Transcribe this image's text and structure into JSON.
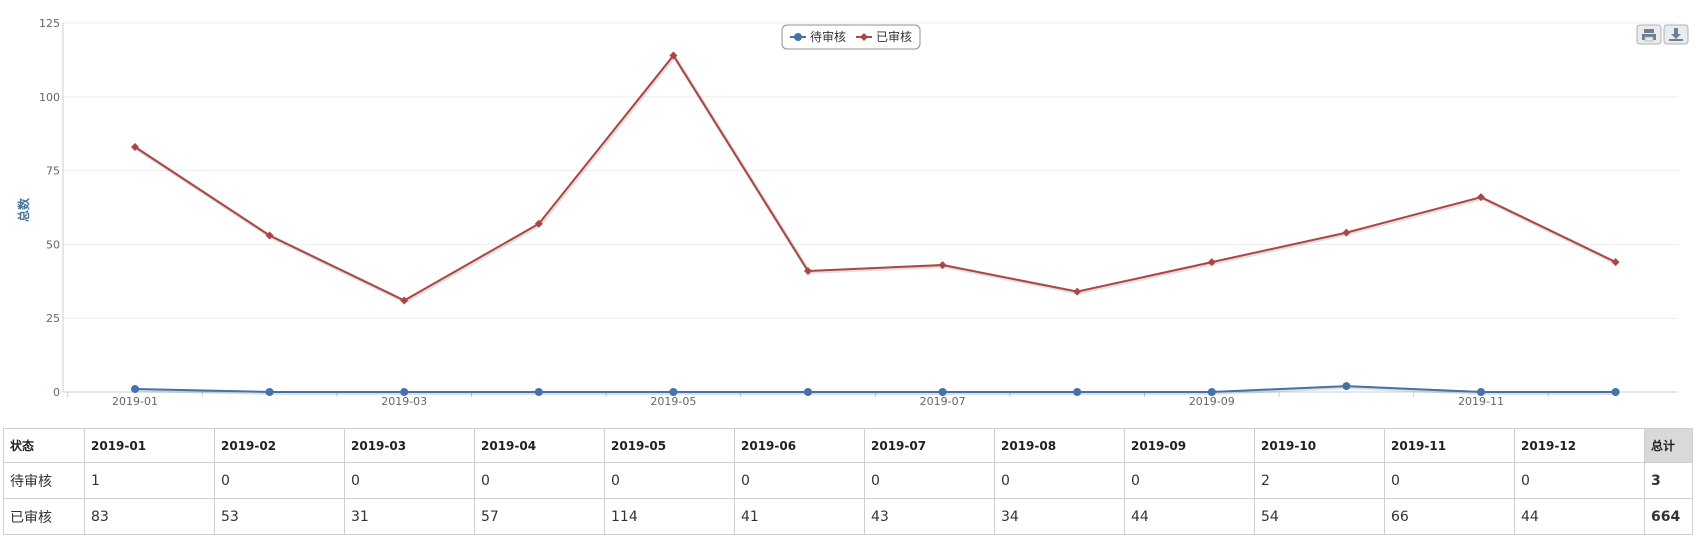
{
  "chart_data": {
    "type": "line",
    "categories": [
      "2019-01",
      "2019-02",
      "2019-03",
      "2019-04",
      "2019-05",
      "2019-06",
      "2019-07",
      "2019-08",
      "2019-09",
      "2019-10",
      "2019-11",
      "2019-12"
    ],
    "x_tick_labels": [
      "2019-01",
      "2019-03",
      "2019-05",
      "2019-07",
      "2019-09",
      "2019-11"
    ],
    "ylabel": "总数",
    "ylim": [
      0,
      125
    ],
    "y_ticks": [
      0,
      25,
      50,
      75,
      100,
      125
    ],
    "grid": true,
    "legend_position": "top-center",
    "series": [
      {
        "name": "待审核",
        "color": "#4572a7",
        "marker": "circle",
        "values": [
          1,
          0,
          0,
          0,
          0,
          0,
          0,
          0,
          0,
          2,
          0,
          0
        ]
      },
      {
        "name": "已审核",
        "color": "#aa4643",
        "marker": "diamond",
        "values": [
          83,
          53,
          31,
          57,
          114,
          41,
          43,
          34,
          44,
          54,
          66,
          44
        ]
      }
    ]
  },
  "export_buttons": [
    {
      "icon": "print-icon"
    },
    {
      "icon": "download-icon"
    }
  ],
  "table": {
    "header_label": "状态",
    "total_label": "总计",
    "columns": [
      "2019-01",
      "2019-02",
      "2019-03",
      "2019-04",
      "2019-05",
      "2019-06",
      "2019-07",
      "2019-08",
      "2019-09",
      "2019-10",
      "2019-11",
      "2019-12"
    ],
    "rows": [
      {
        "label": "待审核",
        "values": [
          "1",
          "0",
          "0",
          "0",
          "0",
          "0",
          "0",
          "0",
          "0",
          "2",
          "0",
          "0"
        ],
        "total": "3"
      },
      {
        "label": "已审核",
        "values": [
          "83",
          "53",
          "31",
          "57",
          "114",
          "41",
          "43",
          "34",
          "44",
          "54",
          "66",
          "44"
        ],
        "total": "664"
      }
    ]
  }
}
